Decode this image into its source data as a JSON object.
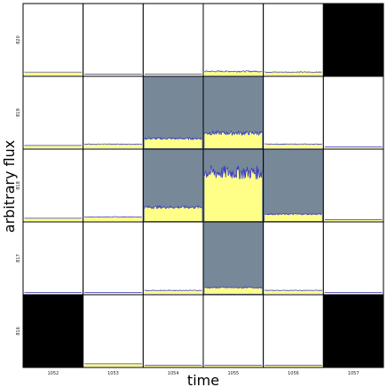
{
  "chart_data": {
    "type": "pixel-grid-light-curves",
    "xlabel": "time",
    "ylabel": "arbitrary flux",
    "columns": [
      "1052",
      "1053",
      "1054",
      "1055",
      "1056",
      "1057"
    ],
    "rows": [
      "820",
      "819",
      "818",
      "817",
      "816"
    ],
    "colors": {
      "aperture_fill": "#778899",
      "masked_fill": "#000000",
      "empty_fill": "#ffffff",
      "flux_fill": "#ffff88",
      "flux_line": "#3333cc",
      "grid_line": "#000000"
    },
    "cells": [
      {
        "row": "820",
        "col": "1052",
        "state": "normal",
        "level": 0.03,
        "noise": 0.0
      },
      {
        "row": "820",
        "col": "1053",
        "state": "normal",
        "level": 0.0,
        "noise": 0.0
      },
      {
        "row": "820",
        "col": "1054",
        "state": "normal",
        "level": 0.0,
        "noise": 0.0
      },
      {
        "row": "820",
        "col": "1055",
        "state": "normal",
        "level": 0.04,
        "noise": 0.01
      },
      {
        "row": "820",
        "col": "1056",
        "state": "normal",
        "level": 0.03,
        "noise": 0.005
      },
      {
        "row": "820",
        "col": "1057",
        "state": "masked",
        "level": 0,
        "noise": 0
      },
      {
        "row": "819",
        "col": "1052",
        "state": "normal",
        "level": 0.02,
        "noise": 0.0
      },
      {
        "row": "819",
        "col": "1053",
        "state": "normal",
        "level": 0.04,
        "noise": 0.005
      },
      {
        "row": "819",
        "col": "1054",
        "state": "aperture",
        "level": 0.12,
        "noise": 0.015
      },
      {
        "row": "819",
        "col": "1055",
        "state": "aperture",
        "level": 0.2,
        "noise": 0.03
      },
      {
        "row": "819",
        "col": "1056",
        "state": "normal",
        "level": 0.04,
        "noise": 0.005
      },
      {
        "row": "819",
        "col": "1057",
        "state": "normal",
        "level": 0.0,
        "noise": 0.0
      },
      {
        "row": "818",
        "col": "1052",
        "state": "normal",
        "level": 0.02,
        "noise": 0.0
      },
      {
        "row": "818",
        "col": "1053",
        "state": "normal",
        "level": 0.04,
        "noise": 0.005
      },
      {
        "row": "818",
        "col": "1054",
        "state": "aperture",
        "level": 0.18,
        "noise": 0.02
      },
      {
        "row": "818",
        "col": "1055",
        "state": "aperture",
        "level": 0.68,
        "noise": 0.1
      },
      {
        "row": "818",
        "col": "1056",
        "state": "aperture",
        "level": 0.08,
        "noise": 0.01
      },
      {
        "row": "818",
        "col": "1057",
        "state": "normal",
        "level": 0.0,
        "noise": 0.0
      },
      {
        "row": "817",
        "col": "1052",
        "state": "normal",
        "level": 0.0,
        "noise": 0.0
      },
      {
        "row": "817",
        "col": "1053",
        "state": "normal",
        "level": 0.0,
        "noise": 0.0
      },
      {
        "row": "817",
        "col": "1054",
        "state": "normal",
        "level": 0.03,
        "noise": 0.005
      },
      {
        "row": "817",
        "col": "1055",
        "state": "aperture",
        "level": 0.07,
        "noise": 0.01
      },
      {
        "row": "817",
        "col": "1056",
        "state": "normal",
        "level": 0.03,
        "noise": 0.005
      },
      {
        "row": "817",
        "col": "1057",
        "state": "normal",
        "level": 0.0,
        "noise": 0.0
      },
      {
        "row": "816",
        "col": "1052",
        "state": "masked",
        "level": 0,
        "noise": 0
      },
      {
        "row": "816",
        "col": "1053",
        "state": "normal",
        "level": 0.02,
        "noise": 0.0
      },
      {
        "row": "816",
        "col": "1054",
        "state": "normal",
        "level": 0.0,
        "noise": 0.0
      },
      {
        "row": "816",
        "col": "1055",
        "state": "normal",
        "level": 0.0,
        "noise": 0.0
      },
      {
        "row": "816",
        "col": "1056",
        "state": "normal",
        "level": 0.0,
        "noise": 0.0
      },
      {
        "row": "816",
        "col": "1057",
        "state": "masked",
        "level": 0,
        "noise": 0
      }
    ]
  }
}
